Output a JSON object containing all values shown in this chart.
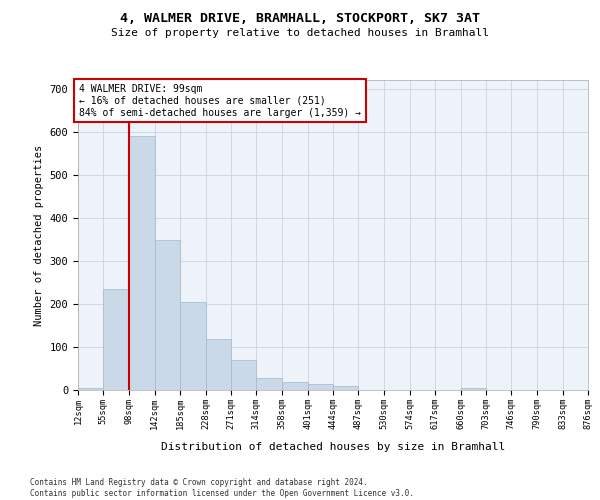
{
  "title": "4, WALMER DRIVE, BRAMHALL, STOCKPORT, SK7 3AT",
  "subtitle": "Size of property relative to detached houses in Bramhall",
  "xlabel": "Distribution of detached houses by size in Bramhall",
  "ylabel": "Number of detached properties",
  "bar_edges": [
    12,
    55,
    98,
    142,
    185,
    228,
    271,
    314,
    358,
    401,
    444,
    487,
    530,
    574,
    617,
    660,
    703,
    746,
    790,
    833,
    876
  ],
  "bar_heights": [
    5,
    235,
    590,
    348,
    204,
    118,
    70,
    28,
    18,
    14,
    10,
    0,
    0,
    0,
    0,
    5,
    0,
    0,
    0,
    0
  ],
  "bar_color": "#c9d9e8",
  "bar_edgecolor": "#a0b8cc",
  "redline_x": 99,
  "redline_color": "#cc0000",
  "annotation_text": "4 WALMER DRIVE: 99sqm\n← 16% of detached houses are smaller (251)\n84% of semi-detached houses are larger (1,359) →",
  "annotation_box_color": "#ffffff",
  "annotation_box_edgecolor": "#cc0000",
  "ylim": [
    0,
    720
  ],
  "yticks": [
    0,
    100,
    200,
    300,
    400,
    500,
    600,
    700
  ],
  "tick_labels": [
    "12sqm",
    "55sqm",
    "98sqm",
    "142sqm",
    "185sqm",
    "228sqm",
    "271sqm",
    "314sqm",
    "358sqm",
    "401sqm",
    "444sqm",
    "487sqm",
    "530sqm",
    "574sqm",
    "617sqm",
    "660sqm",
    "703sqm",
    "746sqm",
    "790sqm",
    "833sqm",
    "876sqm"
  ],
  "footer": "Contains HM Land Registry data © Crown copyright and database right 2024.\nContains public sector information licensed under the Open Government Licence v3.0.",
  "bg_color": "#eef2f9",
  "grid_color": "#c8d4e8",
  "fig_width": 6.0,
  "fig_height": 5.0,
  "dpi": 100
}
